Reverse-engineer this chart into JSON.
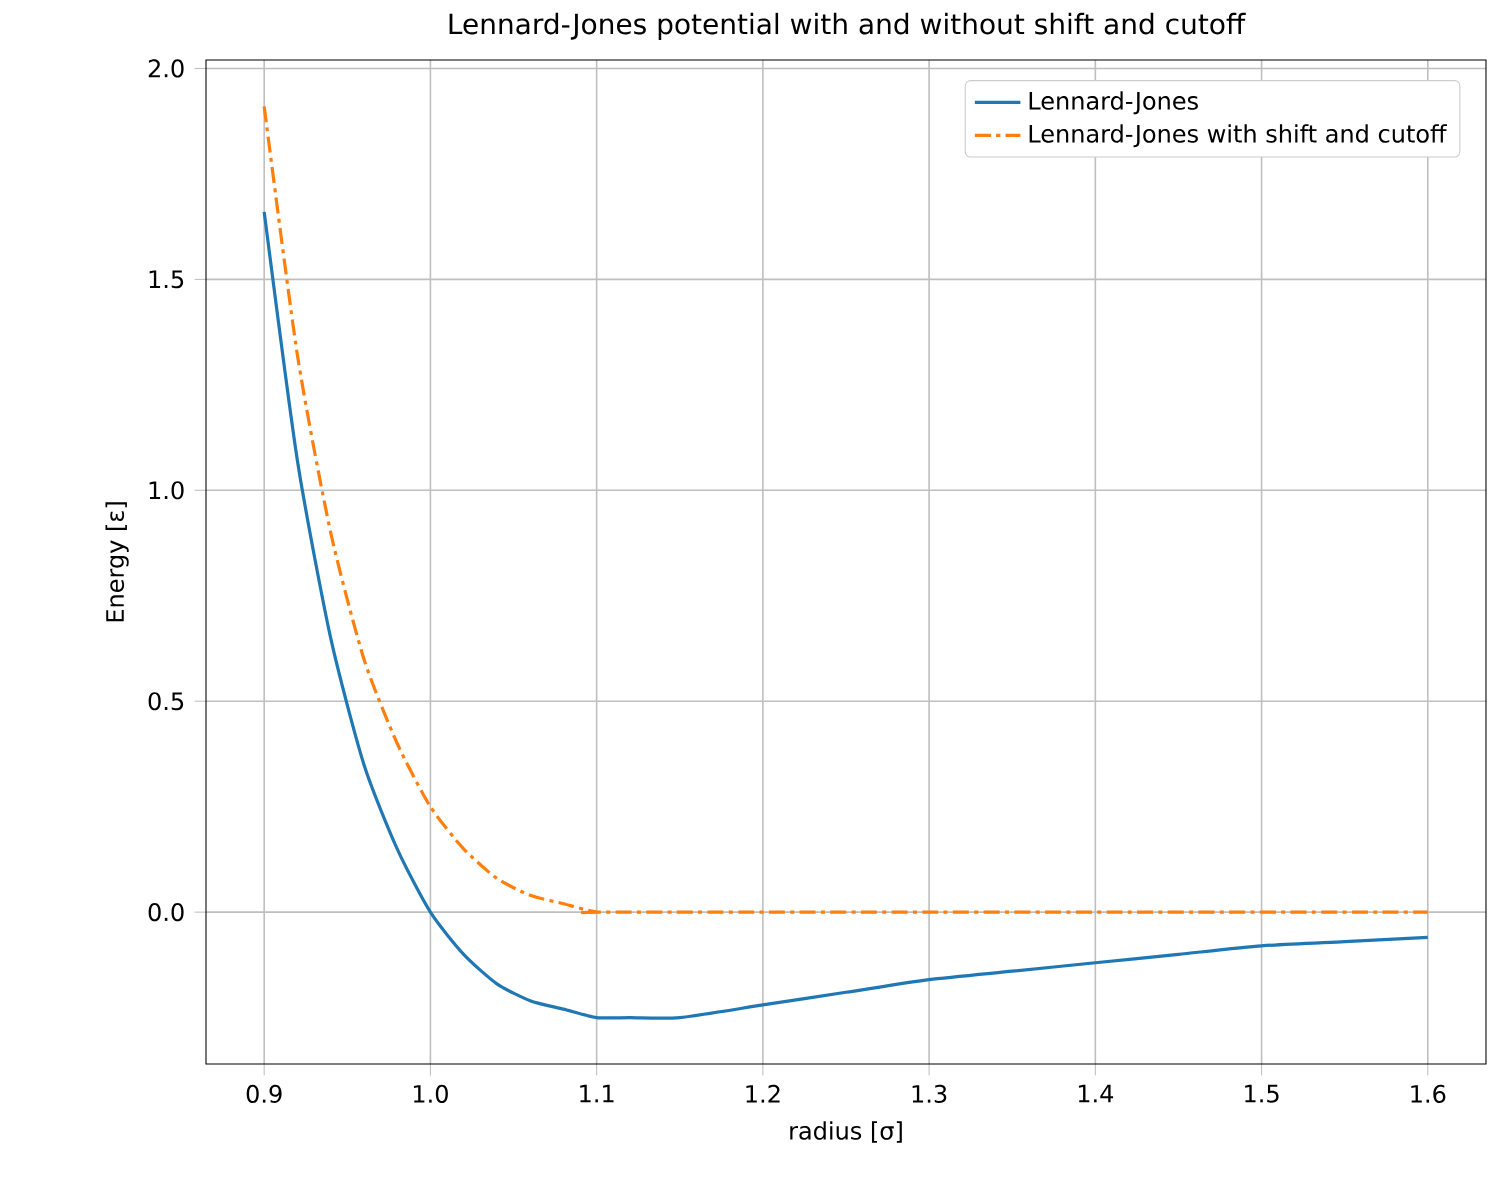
{
  "chart_data": {
    "type": "line",
    "title": "Lennard-Jones potential with and without shift and cutoff",
    "xlabel": "radius [σ]",
    "ylabel": "Energy [ε]",
    "xlim": [
      0.865,
      1.635
    ],
    "ylim": [
      -0.36,
      2.02
    ],
    "xticks": [
      0.9,
      {
        "value": 1,
        "label": "1.0"
      },
      1.1,
      1.2,
      1.3,
      1.4,
      1.5,
      1.6
    ],
    "yticks": [
      {
        "value": 0,
        "label": "0.0"
      },
      {
        "value": 0.5,
        "label": "0.5"
      },
      {
        "value": 1,
        "label": "1.0"
      },
      {
        "value": 1.5,
        "label": "1.5"
      },
      {
        "value": 2,
        "label": "2.0"
      }
    ],
    "grid": true,
    "legend": "top right",
    "series": [
      {
        "name": "Lennard-Jones",
        "color": "#1f77b4",
        "line_style": "solid",
        "x": [
          0.9,
          0.92,
          0.94,
          0.96,
          0.98,
          1.0,
          1.02,
          1.04,
          1.06,
          1.08,
          1.1,
          1.12,
          1.15,
          1.2,
          1.25,
          1.3,
          1.35,
          1.4,
          1.45,
          1.5,
          1.55,
          1.6
        ],
        "values": [
          1.66,
          1.07,
          0.65,
          0.35,
          0.15,
          0.0,
          -0.1,
          -0.17,
          -0.21,
          -0.23,
          -0.25,
          -0.25,
          -0.25,
          -0.22,
          -0.19,
          -0.16,
          -0.14,
          -0.12,
          -0.1,
          -0.08,
          -0.07,
          -0.06
        ]
      },
      {
        "name": "Lennard-Jones with shift and cutoff",
        "color": "#ff7f0e",
        "line_style": "dashdot",
        "x": [
          0.9,
          0.92,
          0.94,
          0.96,
          0.98,
          1.0,
          1.02,
          1.04,
          1.06,
          1.08,
          1.1,
          1.12,
          1.6
        ],
        "values": [
          1.91,
          1.32,
          0.9,
          0.6,
          0.4,
          0.25,
          0.15,
          0.08,
          0.04,
          0.02,
          0.0,
          0.0,
          0.0
        ]
      }
    ]
  }
}
